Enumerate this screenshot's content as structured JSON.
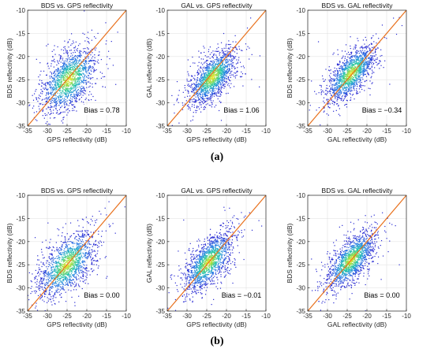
{
  "figure": {
    "caption_a": "(a)",
    "caption_b": "(b)"
  },
  "colors": {
    "identity_line": "#e8711d",
    "low_density": "#2a2cd6",
    "mid_density": "#1fc3a8",
    "high_density": "#f7e52a"
  },
  "chart_data": [
    {
      "type": "scatter",
      "row": "a",
      "title": "BDS vs. GPS reflectivity",
      "xlabel": "GPS reflectivity (dB)",
      "ylabel": "BDS reflectivity (dB)",
      "xlim": [
        -35,
        -10
      ],
      "ylim": [
        -35,
        -10
      ],
      "xticks": [
        -35,
        -30,
        -25,
        -20,
        -15,
        -10
      ],
      "yticks": [
        -35,
        -30,
        -25,
        -20,
        -15,
        -10
      ],
      "grid": true,
      "density_colored": true,
      "reference_line": "y = x",
      "annotation": "Bias = 0.78",
      "cluster": {
        "center": [
          -24.5,
          -25.0
        ],
        "spread_major": 4.2,
        "spread_minor": 2.4
      }
    },
    {
      "type": "scatter",
      "row": "a",
      "title": "GAL vs. GPS reflectivity",
      "xlabel": "GPS reflectivity (dB)",
      "ylabel": "GAL reflectivity (dB)",
      "xlim": [
        -35,
        -10
      ],
      "ylim": [
        -35,
        -10
      ],
      "xticks": [
        -35,
        -30,
        -25,
        -20,
        -15,
        -10
      ],
      "yticks": [
        -35,
        -30,
        -25,
        -20,
        -15,
        -10
      ],
      "grid": true,
      "density_colored": true,
      "reference_line": "y = x",
      "annotation": "Bias = 1.06",
      "cluster": {
        "center": [
          -23.5,
          -24.5
        ],
        "spread_major": 3.6,
        "spread_minor": 1.7
      }
    },
    {
      "type": "scatter",
      "row": "a",
      "title": "BDS vs. GAL reflectivity",
      "xlabel": "GAL reflectivity (dB)",
      "ylabel": "BDS reflectivity (dB)",
      "xlim": [
        -35,
        -10
      ],
      "ylim": [
        -35,
        -10
      ],
      "xticks": [
        -35,
        -30,
        -25,
        -20,
        -15,
        -10
      ],
      "yticks": [
        -35,
        -30,
        -25,
        -20,
        -15,
        -10
      ],
      "grid": true,
      "density_colored": true,
      "reference_line": "y = x",
      "annotation": "Bias = −0.34",
      "cluster": {
        "center": [
          -24.0,
          -23.7
        ],
        "spread_major": 3.8,
        "spread_minor": 1.7
      }
    },
    {
      "type": "scatter",
      "row": "b",
      "title": "BDS vs. GPS reflectivity",
      "xlabel": "GPS reflectivity (dB)",
      "ylabel": "BDS reflectivity (dB)",
      "xlim": [
        -35,
        -10
      ],
      "ylim": [
        -35,
        -10
      ],
      "xticks": [
        -35,
        -30,
        -25,
        -20,
        -15,
        -10
      ],
      "yticks": [
        -35,
        -30,
        -25,
        -20,
        -15,
        -10
      ],
      "grid": true,
      "density_colored": true,
      "reference_line": "y = x",
      "annotation": "Bias = 0.00",
      "cluster": {
        "center": [
          -25.0,
          -25.0
        ],
        "spread_major": 4.4,
        "spread_minor": 2.3
      }
    },
    {
      "type": "scatter",
      "row": "b",
      "title": "GAL vs. GPS reflectivity",
      "xlabel": "GPS reflectivity (dB)",
      "ylabel": "GAL reflectivity (dB)",
      "xlim": [
        -35,
        -10
      ],
      "ylim": [
        -35,
        -10
      ],
      "xticks": [
        -35,
        -30,
        -25,
        -20,
        -15,
        -10
      ],
      "yticks": [
        -35,
        -30,
        -25,
        -20,
        -15,
        -10
      ],
      "grid": true,
      "density_colored": true,
      "reference_line": "y = x",
      "annotation": "Bias = −0.01",
      "cluster": {
        "center": [
          -24.5,
          -24.5
        ],
        "spread_major": 3.9,
        "spread_minor": 1.8
      }
    },
    {
      "type": "scatter",
      "row": "b",
      "title": "BDS vs. GAL reflectivity",
      "xlabel": "GAL reflectivity (dB)",
      "ylabel": "BDS reflectivity (dB)",
      "xlim": [
        -35,
        -10
      ],
      "ylim": [
        -35,
        -10
      ],
      "xticks": [
        -35,
        -30,
        -25,
        -20,
        -15,
        -10
      ],
      "yticks": [
        -35,
        -30,
        -25,
        -20,
        -15,
        -10
      ],
      "grid": true,
      "density_colored": true,
      "reference_line": "y = x",
      "annotation": "Bias = 0.00",
      "cluster": {
        "center": [
          -24.0,
          -24.0
        ],
        "spread_major": 3.8,
        "spread_minor": 1.7
      }
    }
  ]
}
